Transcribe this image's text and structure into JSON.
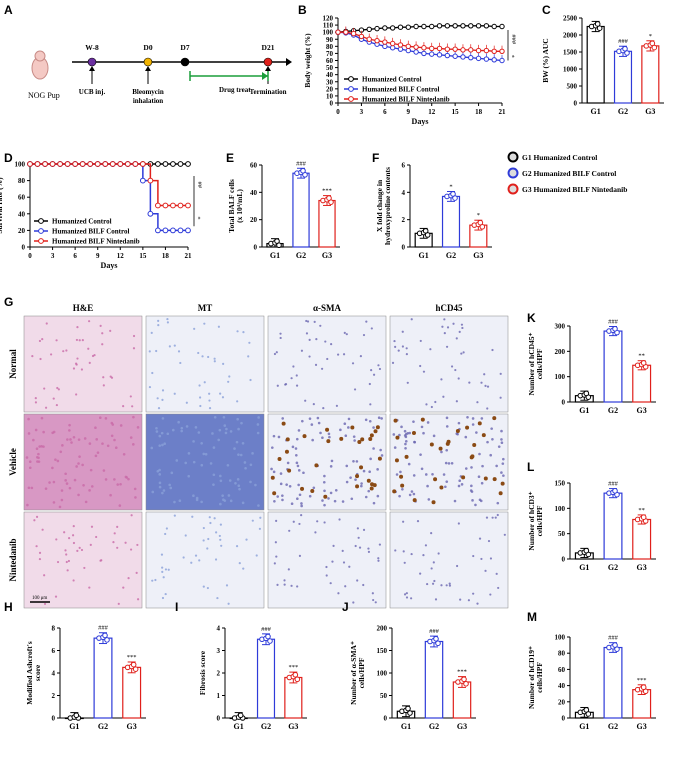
{
  "colors": {
    "g1": "#000000",
    "g2": "#2e3bd9",
    "g3": "#e0201b",
    "arrow": "#1a9e3a",
    "gray": "#9a9a9a"
  },
  "panel_letters": [
    "A",
    "B",
    "C",
    "D",
    "E",
    "F",
    "G",
    "H",
    "I",
    "J",
    "K",
    "L",
    "M"
  ],
  "timeline": {
    "pup": "NOG Pup",
    "events": [
      {
        "label": "W-8",
        "desc": "UCB inj.",
        "color": "#6b2fa0"
      },
      {
        "label": "D0",
        "desc": "Bleomycin inhalation",
        "color": "#f2b400"
      },
      {
        "label": "D7",
        "desc": "",
        "color": "#000000"
      },
      {
        "label": "D21",
        "desc": "Termination",
        "color": "#e0201b"
      }
    ],
    "drug": "Drug treat"
  },
  "legend_main": [
    "G1 Humanized Control",
    "G2 Humanized BILF Control",
    "G3 Humanized BILF Nintedanib"
  ],
  "histology": {
    "columns": [
      "H&E",
      "MT",
      "α-SMA",
      "hCD45"
    ],
    "rows": [
      "Normal",
      "Vehicle",
      "Nintedanib"
    ],
    "scale_bar": "100 μm"
  },
  "chart_data": [
    {
      "id": "B",
      "type": "line",
      "ylabel": "Body weight (%)",
      "xlabel": "Days",
      "x": [
        0,
        1,
        2,
        3,
        4,
        5,
        6,
        7,
        8,
        9,
        10,
        11,
        12,
        13,
        14,
        15,
        16,
        17,
        18,
        19,
        20,
        21
      ],
      "xticks": [
        0,
        3,
        6,
        9,
        12,
        15,
        18,
        21
      ],
      "ylim": [
        0,
        120
      ],
      "yticks": [
        0,
        10,
        20,
        30,
        40,
        50,
        60,
        70,
        80,
        90,
        100,
        110,
        120
      ],
      "series": [
        {
          "name": "Humanized Control",
          "color": "g1",
          "values": [
            100,
            101,
            102,
            103,
            104,
            105,
            106,
            106,
            107,
            107,
            108,
            108,
            108,
            109,
            109,
            109,
            109,
            109,
            109,
            109,
            108,
            108
          ]
        },
        {
          "name": "Humanized BILF Control",
          "color": "g2",
          "values": [
            100,
            99,
            96,
            90,
            86,
            83,
            80,
            78,
            76,
            74,
            72,
            70,
            69,
            68,
            67,
            66,
            65,
            64,
            63,
            62,
            61,
            60
          ]
        },
        {
          "name": "Humanized BILF Nintedanib",
          "color": "g3",
          "values": [
            100,
            100,
            98,
            94,
            90,
            88,
            86,
            84,
            82,
            80,
            79,
            78,
            77,
            77,
            76,
            76,
            75,
            75,
            74,
            74,
            73,
            73
          ]
        }
      ],
      "annotations": [
        "###",
        "*"
      ]
    },
    {
      "id": "C",
      "type": "bar",
      "ylabel": "BW (%) AUC",
      "categories": [
        "G1",
        "G2",
        "G3"
      ],
      "values": [
        2250,
        1520,
        1680
      ],
      "ylim": [
        0,
        2500
      ],
      "yticks": [
        0,
        500,
        1000,
        1500,
        2000,
        2500
      ],
      "sig": [
        "",
        "###",
        "*"
      ]
    },
    {
      "id": "D",
      "type": "line",
      "ylabel": "Survival rate (%)",
      "xlabel": "Days",
      "xticks": [
        0,
        3,
        6,
        9,
        12,
        15,
        18,
        21
      ],
      "ylim": [
        0,
        100
      ],
      "yticks": [
        0,
        20,
        40,
        60,
        80,
        100
      ],
      "series": [
        {
          "name": "Humanized Control",
          "color": "g1",
          "steps": [
            [
              0,
              100
            ],
            [
              21,
              100
            ]
          ]
        },
        {
          "name": "Humanized BILF Control",
          "color": "g2",
          "steps": [
            [
              0,
              100
            ],
            [
              15,
              100
            ],
            [
              15,
              80
            ],
            [
              16,
              80
            ],
            [
              16,
              40
            ],
            [
              17,
              40
            ],
            [
              17,
              20
            ],
            [
              21,
              20
            ]
          ]
        },
        {
          "name": "Humanized BILF Nintedanib",
          "color": "g3",
          "steps": [
            [
              0,
              100
            ],
            [
              16,
              100
            ],
            [
              16,
              80
            ],
            [
              17,
              80
            ],
            [
              17,
              50
            ],
            [
              21,
              50
            ]
          ]
        }
      ],
      "annotations": [
        "##",
        "*"
      ]
    },
    {
      "id": "E",
      "type": "bar",
      "ylabel": "Total BALF cells",
      "ylabel2": "(x 10⁴/mL)",
      "categories": [
        "G1",
        "G2",
        "G3"
      ],
      "values": [
        2.5,
        54,
        34
      ],
      "ylim": [
        0,
        60
      ],
      "yticks": [
        0,
        20,
        40,
        60
      ],
      "sig": [
        "",
        "###",
        "***"
      ]
    },
    {
      "id": "F",
      "type": "bar",
      "ylabel": "X fold change in",
      "ylabel2": "hydroxyproline contents",
      "categories": [
        "G1",
        "G2",
        "G3"
      ],
      "values": [
        1,
        3.7,
        1.6
      ],
      "ylim": [
        0,
        6
      ],
      "yticks": [
        0,
        2,
        4,
        6
      ],
      "sig": [
        "",
        "*",
        "*"
      ]
    },
    {
      "id": "K",
      "type": "bar",
      "ylabel": "Number of hCD45⁺",
      "ylabel2": "cells/HPF",
      "categories": [
        "G1",
        "G2",
        "G3"
      ],
      "values": [
        25,
        280,
        145
      ],
      "ylim": [
        0,
        300
      ],
      "yticks": [
        0,
        100,
        200,
        300
      ],
      "sig": [
        "",
        "###",
        "**"
      ]
    },
    {
      "id": "L",
      "type": "bar",
      "ylabel": "Number of hCD3⁺",
      "ylabel2": "cells/HPF",
      "categories": [
        "G1",
        "G2",
        "G3"
      ],
      "values": [
        12,
        130,
        78
      ],
      "ylim": [
        0,
        150
      ],
      "yticks": [
        0,
        50,
        100,
        150
      ],
      "sig": [
        "",
        "###",
        "**"
      ]
    },
    {
      "id": "H",
      "type": "bar",
      "ylabel": "Modified Ashcroft's",
      "ylabel2": "score",
      "categories": [
        "G1",
        "G2",
        "G3"
      ],
      "values": [
        0,
        7.1,
        4.5
      ],
      "ylim": [
        0,
        8
      ],
      "yticks": [
        0,
        2,
        4,
        6,
        8
      ],
      "sig": [
        "",
        "###",
        "***"
      ]
    },
    {
      "id": "I",
      "type": "bar",
      "ylabel": "Fibrosis score",
      "categories": [
        "G1",
        "G2",
        "G3"
      ],
      "values": [
        0,
        3.5,
        1.8
      ],
      "ylim": [
        0,
        4
      ],
      "yticks": [
        0,
        1,
        2,
        3,
        4
      ],
      "sig": [
        "",
        "###",
        "***"
      ]
    },
    {
      "id": "J",
      "type": "bar",
      "ylabel": "Number of α-SMA⁺",
      "ylabel2": "cells/HPF",
      "categories": [
        "G1",
        "G2",
        "G3"
      ],
      "values": [
        15,
        170,
        80
      ],
      "ylim": [
        0,
        200
      ],
      "yticks": [
        0,
        50,
        100,
        150,
        200
      ],
      "sig": [
        "",
        "###",
        "***"
      ]
    },
    {
      "id": "M",
      "type": "bar",
      "ylabel": "Number of hCD19⁺",
      "ylabel2": "cells/HPF",
      "categories": [
        "G1",
        "G2",
        "G3"
      ],
      "values": [
        7,
        87,
        35
      ],
      "ylim": [
        0,
        100
      ],
      "yticks": [
        0,
        20,
        40,
        60,
        80,
        100
      ],
      "sig": [
        "",
        "###",
        "***"
      ]
    }
  ]
}
